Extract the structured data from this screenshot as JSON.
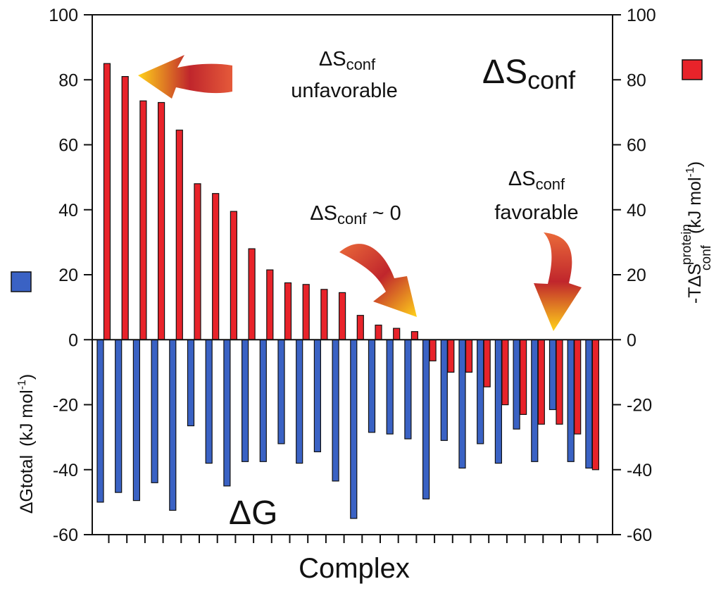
{
  "chart_data": {
    "type": "bar",
    "xlabel": "Complex",
    "ylabel_left": {
      "main": "ΔGtotal",
      "unit": "(kJ mol",
      "sup": "-1",
      "close": ")"
    },
    "ylabel_right": {
      "prefix": "-TΔS",
      "sup": "protein",
      "sub": "conf",
      "unit": "(kJ mol",
      "unit_sup": "-1",
      "close": ")"
    },
    "ylim": [
      -60,
      100
    ],
    "yticks": [
      100,
      80,
      60,
      40,
      20,
      0,
      -20,
      -40,
      -60
    ],
    "ytick_labels": [
      "100",
      "80",
      "60",
      "40",
      "20",
      "0",
      "-20",
      "-40",
      "-60"
    ],
    "grid": false,
    "legend": [
      {
        "series": "dG",
        "color": "#3a62c4",
        "placement": "left"
      },
      {
        "series": "TdS",
        "color": "#e8232a",
        "placement": "right"
      }
    ],
    "series": [
      {
        "key": "dG",
        "color": "#3a62c4",
        "values": [
          -50,
          -47,
          -49.5,
          -44,
          -52.5,
          -26.5,
          -38,
          -45,
          -37.5,
          -37.5,
          -32,
          -38,
          -34.5,
          -43.5,
          -55,
          -28.5,
          -29,
          -30.5,
          -49,
          -31,
          -39.5,
          -32,
          -38,
          -27.5,
          -37.5,
          -21.5,
          -37.5,
          -39.5
        ]
      },
      {
        "key": "TdS",
        "color": "#e8232a",
        "values": [
          85,
          81,
          73.5,
          73,
          64.5,
          48,
          45,
          39.5,
          28,
          21.5,
          17.5,
          17,
          15.5,
          14.5,
          7.5,
          4.5,
          3.5,
          2.5,
          -6.5,
          -10,
          -10,
          -14.5,
          -20,
          -23,
          -26,
          -26,
          -29,
          -40
        ]
      }
    ],
    "annotations": [
      {
        "name": "unfavorable",
        "main": "ΔS",
        "sub": "conf",
        "line2": "unfavorable"
      },
      {
        "name": "zero",
        "main": "ΔS",
        "sub": "conf",
        "tail": " ~ 0"
      },
      {
        "name": "favorable",
        "main": "ΔS",
        "sub": "conf",
        "line2": "favorable"
      }
    ],
    "big_labels": {
      "dS": {
        "main": "ΔS",
        "sub": "conf"
      },
      "dG": {
        "main": "ΔG"
      }
    }
  }
}
